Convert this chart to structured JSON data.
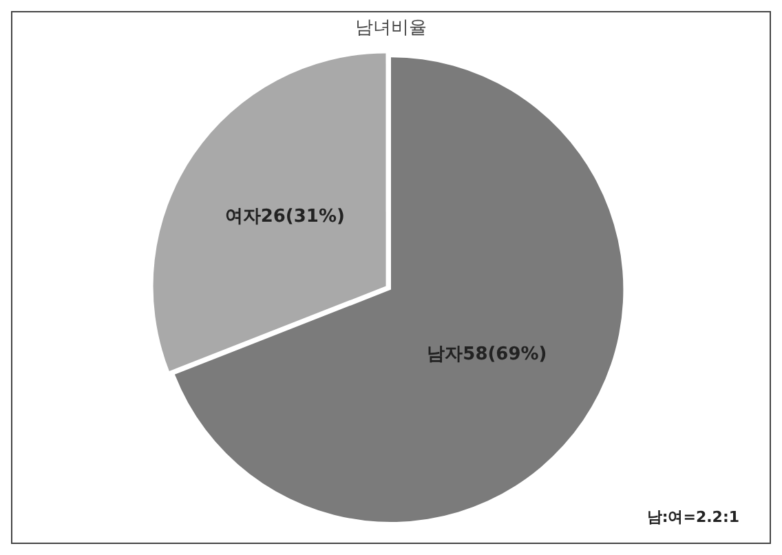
{
  "chart_data": {
    "type": "pie",
    "title": "남녀비율",
    "categories": [
      "남자",
      "여자"
    ],
    "values": [
      58,
      26
    ],
    "colors": [
      "#7b7b7b",
      "#a9a9a9"
    ],
    "value_labels": [
      "58(69%)",
      "26(31%)"
    ],
    "annotations": [
      "남:여=2.2:1"
    ],
    "legend": false
  }
}
